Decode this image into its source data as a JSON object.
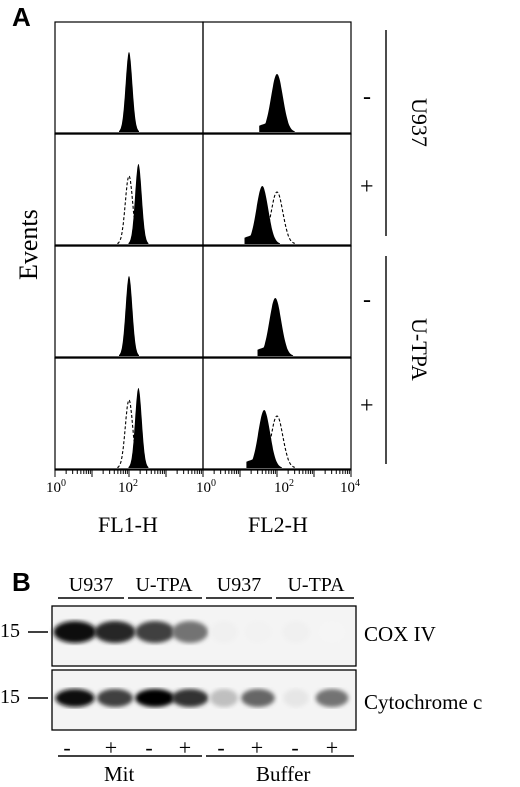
{
  "panel_a": {
    "letter": "A",
    "y_axis_label": "Events",
    "x_axis_labels": [
      "FL1-H",
      "FL2-H"
    ],
    "tick_labels": [
      {
        "base": "10",
        "exp": "0"
      },
      {
        "base": "10",
        "exp": "2"
      },
      {
        "base": "10",
        "exp": "0"
      },
      {
        "base": "10",
        "exp": "2"
      },
      {
        "base": "10",
        "exp": "4"
      }
    ],
    "row_signs": [
      "-",
      "+",
      "-",
      "+"
    ],
    "group_labels": [
      "U937",
      "U-TPA"
    ]
  },
  "panel_b": {
    "letter": "B",
    "lane_groups": [
      "U937",
      "U-TPA",
      "U937",
      "U-TPA"
    ],
    "lane_signs": [
      "-",
      "+",
      "-",
      "+",
      "-",
      "+",
      "-",
      "+"
    ],
    "bottom_groups": [
      "Mit",
      "Buffer"
    ],
    "blots": [
      {
        "marker": "15",
        "label": "COX IV",
        "band_intensity": [
          0.95,
          0.85,
          0.75,
          0.55,
          0.06,
          0.05,
          0.06,
          0.04
        ]
      },
      {
        "marker": "15",
        "label": "Cytochrome c",
        "band_intensity": [
          0.95,
          0.75,
          0.98,
          0.8,
          0.25,
          0.6,
          0.1,
          0.55
        ]
      }
    ]
  },
  "chart_data": {
    "type": "histogram-grid",
    "y_axis_label": "Events",
    "x_axes": [
      "FL1-H",
      "FL2-H"
    ],
    "x_scale": "log",
    "x_range": [
      1,
      10000
    ],
    "rows": [
      {
        "group": "U937",
        "sign": "-",
        "FL1-H": {
          "filled_peak": 100
        },
        "FL2-H": {
          "filled_peak": 100
        }
      },
      {
        "group": "U937",
        "sign": "+",
        "FL1-H": {
          "filled_peak": 180,
          "dashed_peak": 100
        },
        "FL2-H": {
          "filled_peak": 40,
          "dashed_peak": 100
        }
      },
      {
        "group": "U-TPA",
        "sign": "-",
        "FL1-H": {
          "filled_peak": 100
        },
        "FL2-H": {
          "filled_peak": 90
        }
      },
      {
        "group": "U-TPA",
        "sign": "+",
        "FL1-H": {
          "filled_peak": 180,
          "dashed_peak": 100
        },
        "FL2-H": {
          "filled_peak": 45,
          "dashed_peak": 100
        }
      }
    ]
  }
}
